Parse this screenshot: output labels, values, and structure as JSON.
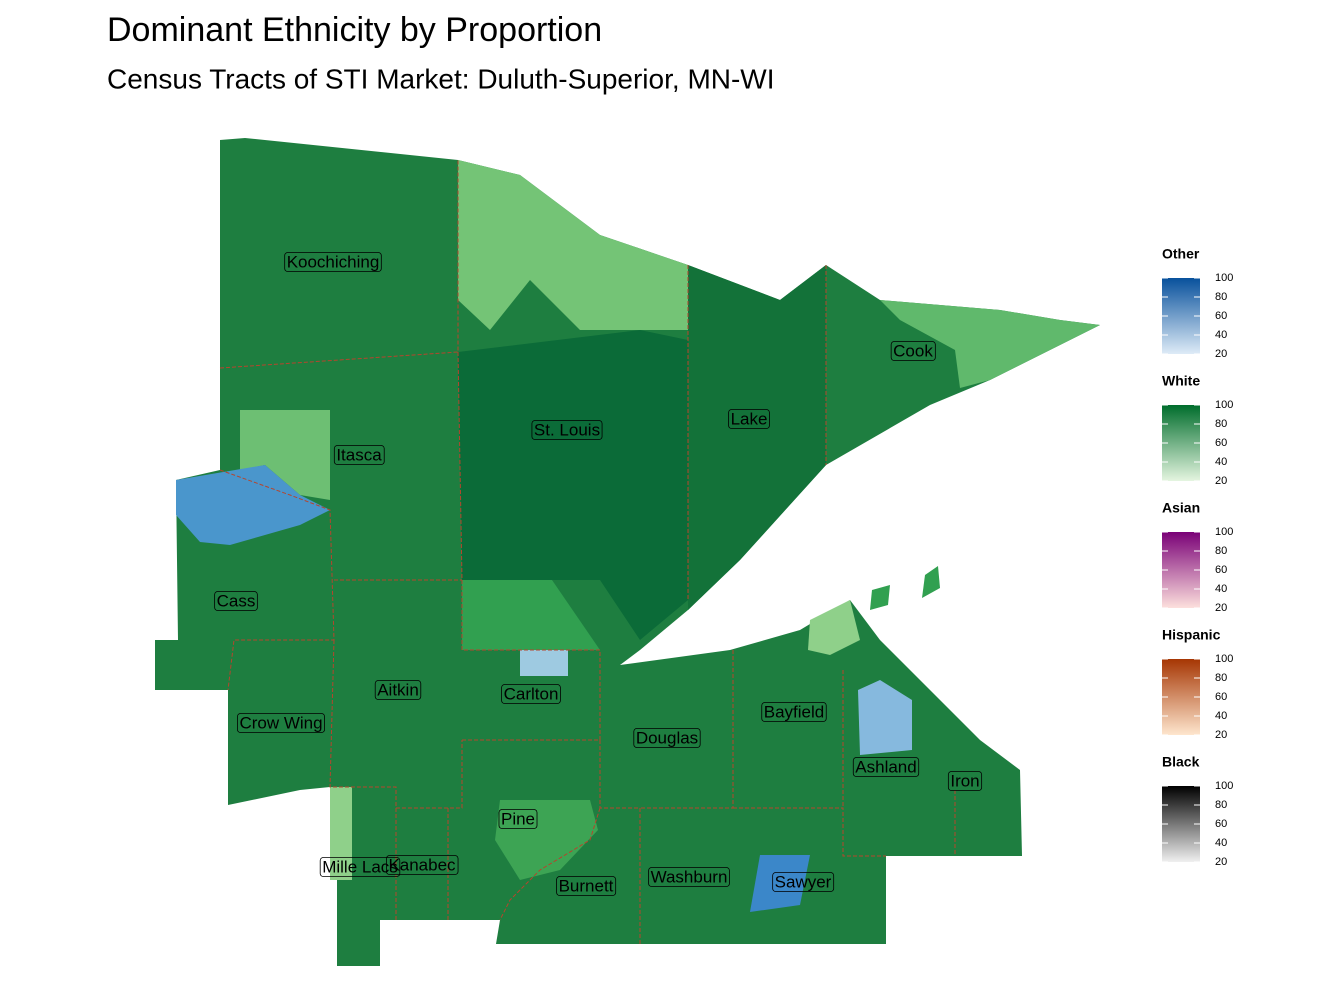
{
  "header": {
    "title": "Dominant Ethnicity by Proportion",
    "subtitle": "Census Tracts of STI Market: Duluth-Superior, MN-WI"
  },
  "counties": [
    "Koochiching",
    "Cook",
    "St. Louis",
    "Lake",
    "Itasca",
    "Cass",
    "Carlton",
    "Aitkin",
    "Crow Wing",
    "Douglas",
    "Bayfield",
    "Ashland",
    "Iron",
    "Pine",
    "Mille Lacs",
    "Kanabec",
    "Burnett",
    "Washburn",
    "Sawyer"
  ],
  "legends": [
    {
      "title": "Other",
      "colors": [
        "#deebf7",
        "#08519c"
      ],
      "ticks": [
        100,
        80,
        60,
        40,
        20
      ]
    },
    {
      "title": "White",
      "colors": [
        "#e5f5e0",
        "#006d2c"
      ],
      "ticks": [
        100,
        80,
        60,
        40,
        20
      ]
    },
    {
      "title": "Asian",
      "colors": [
        "#fde0dd",
        "#7a0177"
      ],
      "ticks": [
        100,
        80,
        60,
        40,
        20
      ]
    },
    {
      "title": "Hispanic",
      "colors": [
        "#fee6ce",
        "#a63603"
      ],
      "ticks": [
        100,
        80,
        60,
        40,
        20
      ]
    },
    {
      "title": "Black",
      "colors": [
        "#f0f0f0",
        "#000000"
      ],
      "ticks": [
        100,
        80,
        60,
        40,
        20
      ]
    }
  ]
}
